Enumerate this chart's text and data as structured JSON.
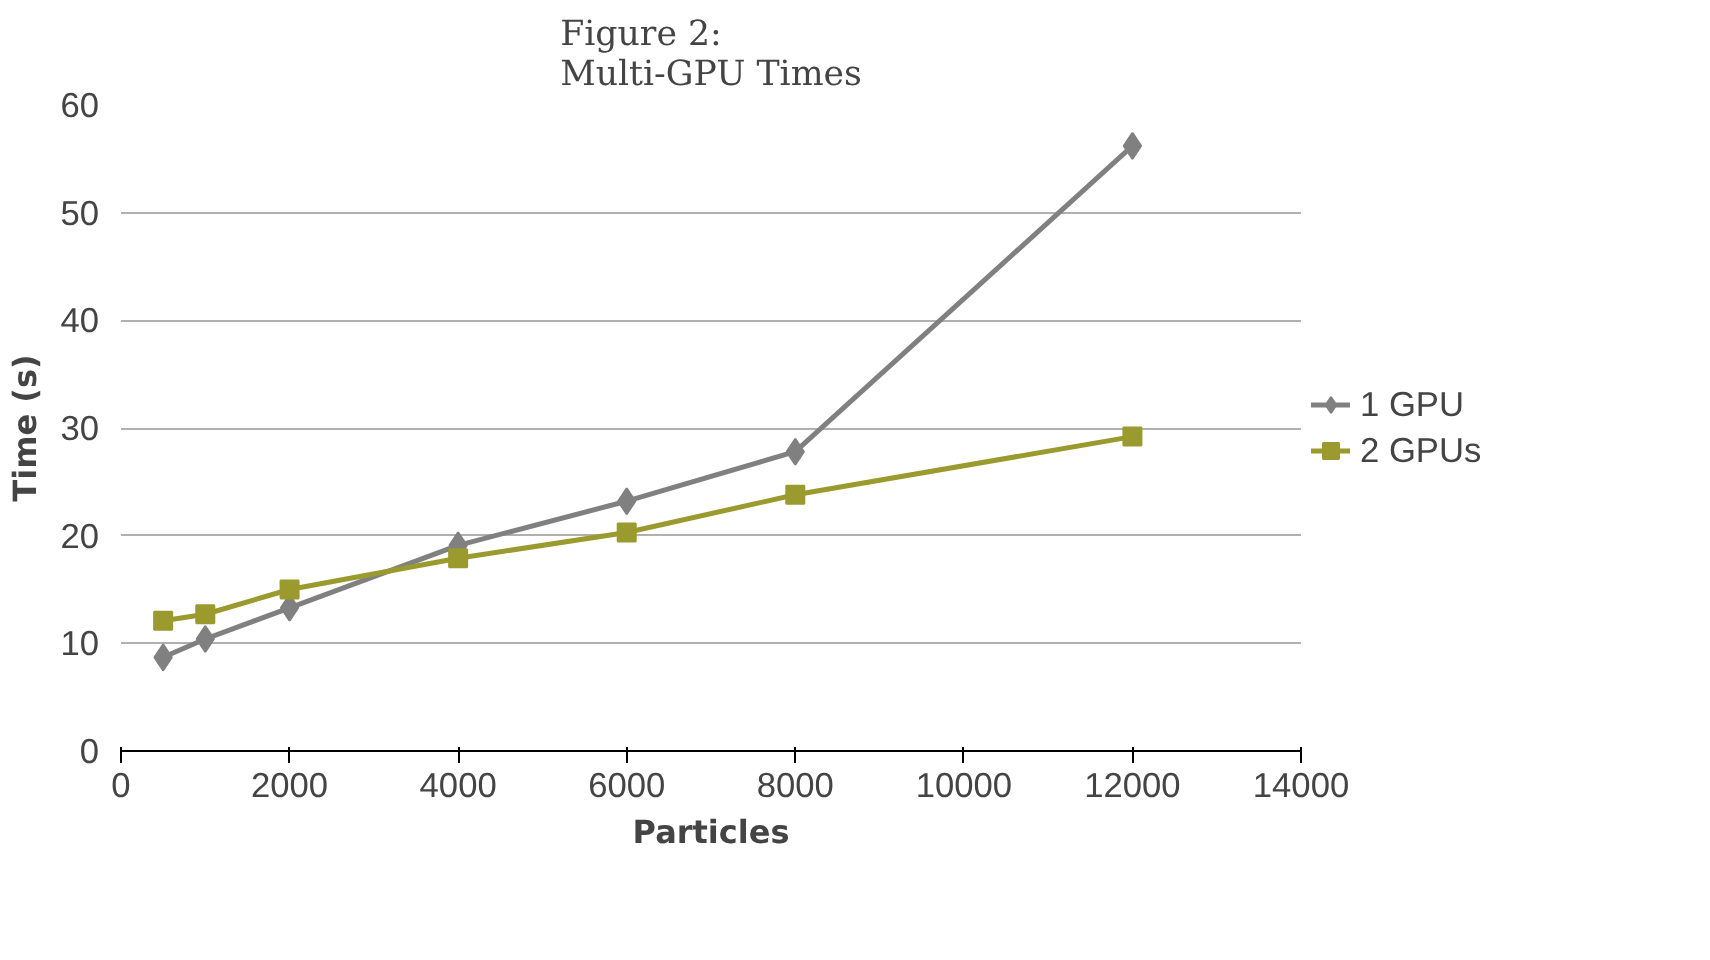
{
  "chart_data": {
    "type": "line",
    "title": "Figure 2:\nMulti-GPU Times",
    "xlabel": "Particles",
    "ylabel": "Time (s)",
    "x": [
      500,
      1000,
      2000,
      4000,
      6000,
      8000,
      12000
    ],
    "series": [
      {
        "name": "1 GPU",
        "color": "#808080",
        "marker": "diamond",
        "values": [
          8.7,
          10.4,
          13.3,
          19.1,
          23.2,
          27.8,
          56.2
        ]
      },
      {
        "name": "2 GPUs",
        "color": "#9a9a2e",
        "marker": "square",
        "values": [
          12.1,
          12.7,
          15.0,
          17.9,
          20.3,
          23.8,
          29.2
        ]
      }
    ],
    "xlim": [
      0,
      14000
    ],
    "xticks": [
      0,
      2000,
      4000,
      6000,
      8000,
      10000,
      12000,
      14000
    ],
    "ylim": [
      0,
      60
    ],
    "yticks": [
      0,
      10,
      20,
      30,
      40,
      50,
      60
    ],
    "grid": "y",
    "legend": "right",
    "line_style": "solid"
  }
}
